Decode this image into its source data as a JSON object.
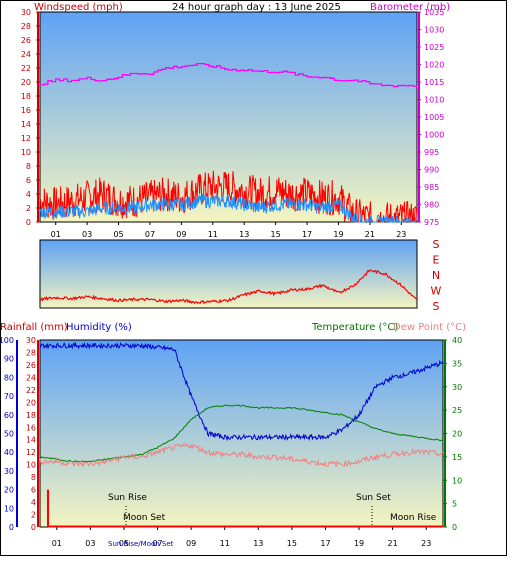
{
  "header": {
    "title": "24 hour graph day : 13 June 2025",
    "left_label": "Windspeed (mph)",
    "right_label": "Barometer (mb)"
  },
  "colors": {
    "wind_red": "#ff0000",
    "gust_blue": "#1e90ff",
    "baro": "#ff00ff",
    "temp": "#008000",
    "dew": "#f08080",
    "humidity": "#0000cc",
    "rain": "#ff0000",
    "label_red": "#cc0000",
    "label_green": "#007700",
    "label_blue": "#0000cc",
    "label_magenta": "#cc00cc",
    "sky_top": "#5ea2f5",
    "sky_bottom": "#f4f4c0"
  },
  "x_ticks": [
    "01",
    "03",
    "05",
    "07",
    "09",
    "11",
    "13",
    "15",
    "17",
    "19",
    "21",
    "23"
  ],
  "chart_data": [
    {
      "type": "line",
      "panel": "wind-barometer",
      "title": "24 hour graph day : 13 June 2025",
      "ylabel_left": "Windspeed (mph)",
      "ylabel_right": "Barometer (mb)",
      "ylim_left": [
        0,
        30
      ],
      "ylim_right": [
        975,
        1035
      ],
      "y_ticks_left": [
        "0",
        "2",
        "4",
        "6",
        "8",
        "10",
        "12",
        "14",
        "16",
        "18",
        "20",
        "22",
        "24",
        "26",
        "28",
        "30"
      ],
      "y_ticks_right": [
        "975",
        "980",
        "985",
        "990",
        "995",
        "1000",
        "1005",
        "1010",
        "1015",
        "1020",
        "1025",
        "1030",
        "1035"
      ],
      "x": [
        0,
        1,
        2,
        3,
        4,
        5,
        6,
        7,
        8,
        9,
        10,
        11,
        12,
        13,
        14,
        15,
        16,
        17,
        18,
        19,
        20,
        21,
        22,
        23,
        24
      ],
      "series": [
        {
          "name": "Windspeed",
          "values": [
            3,
            2.5,
            3,
            3.5,
            4,
            3,
            3,
            3.5,
            4,
            3.5,
            4.5,
            5,
            5,
            4.5,
            4,
            4.5,
            4,
            4,
            3.5,
            3.5,
            1,
            0.5,
            0.5,
            0.5,
            0.5
          ]
        },
        {
          "name": "Gust",
          "values": [
            1.5,
            1.5,
            1.5,
            1.5,
            2,
            2,
            2,
            2.5,
            2.5,
            2.5,
            3,
            3,
            3,
            2.5,
            2,
            2.5,
            2.5,
            2.5,
            2,
            2.5,
            0.5,
            0,
            0,
            0,
            0
          ]
        },
        {
          "name": "Barometer",
          "values": [
            1014.5,
            1015.5,
            1015.5,
            1016,
            1015.5,
            1016.5,
            1017.5,
            1017.5,
            1019,
            1019.5,
            1020,
            1019.5,
            1018.5,
            1018.5,
            1018,
            1018,
            1017.5,
            1016.5,
            1016.5,
            1015.5,
            1015.5,
            1014.5,
            1014,
            1014,
            1014
          ]
        }
      ]
    },
    {
      "type": "line",
      "panel": "wind-direction",
      "y_ticks": [
        "S",
        "E",
        "N",
        "W",
        "S"
      ],
      "x": [
        0,
        1,
        2,
        3,
        4,
        5,
        6,
        7,
        8,
        9,
        10,
        11,
        12,
        13,
        14,
        15,
        16,
        17,
        18,
        19,
        20,
        21,
        22,
        23,
        24
      ],
      "series": [
        {
          "name": "Wind direction",
          "values": [
            45,
            55,
            50,
            60,
            50,
            40,
            45,
            45,
            35,
            40,
            30,
            35,
            40,
            70,
            90,
            75,
            95,
            100,
            120,
            80,
            120,
            200,
            180,
            120,
            40
          ]
        }
      ]
    },
    {
      "type": "line",
      "panel": "rain-humidity-temperature",
      "labels": {
        "rainfall": "Rainfall (mm)",
        "humidity": "Humidity (%)",
        "temperature": "Temperature (°C)",
        "dewpoint": "Dew Point (°C)"
      },
      "ylim_rain": [
        0,
        30
      ],
      "ylim_humidity": [
        0,
        100
      ],
      "ylim_temperature": [
        0,
        40
      ],
      "y_ticks_rain": [
        "0",
        "2",
        "4",
        "6",
        "8",
        "10",
        "12",
        "14",
        "16",
        "18",
        "20",
        "22",
        "24",
        "26",
        "28",
        "30"
      ],
      "y_ticks_humidity": [
        "0",
        "10",
        "20",
        "30",
        "40",
        "50",
        "60",
        "70",
        "80",
        "90",
        "100"
      ],
      "y_ticks_temperature": [
        "0",
        "5",
        "10",
        "15",
        "20",
        "25",
        "30",
        "35",
        "40"
      ],
      "x": [
        0,
        1,
        2,
        3,
        4,
        5,
        6,
        7,
        8,
        9,
        10,
        11,
        12,
        13,
        14,
        15,
        16,
        17,
        18,
        19,
        20,
        21,
        22,
        23,
        24
      ],
      "series": [
        {
          "name": "Humidity",
          "values": [
            97,
            97,
            97,
            97,
            97,
            97,
            97,
            96,
            95,
            70,
            50,
            48,
            48,
            48,
            48,
            48,
            48,
            48,
            52,
            60,
            75,
            80,
            82,
            85,
            88
          ]
        },
        {
          "name": "Temperature",
          "values": [
            15,
            14.5,
            14,
            14,
            14.5,
            15,
            15.5,
            17,
            19,
            23,
            25.5,
            26,
            26,
            25.5,
            25.5,
            25.5,
            25,
            24.5,
            24,
            22.5,
            21,
            20,
            19.5,
            19,
            18.5
          ]
        },
        {
          "name": "Dew Point",
          "values": [
            14,
            14,
            13.5,
            13.5,
            14,
            15,
            15,
            16,
            17,
            17.5,
            16,
            15.5,
            15.5,
            15,
            15,
            14.5,
            14,
            13.5,
            13.5,
            14,
            15,
            15.5,
            16,
            16,
            15.5
          ]
        },
        {
          "name": "Rainfall",
          "values": [
            6,
            6,
            6,
            6,
            6,
            6,
            6,
            6,
            6,
            6,
            6,
            6,
            6,
            6,
            6,
            6,
            6,
            6,
            6,
            6,
            6,
            6,
            6,
            6,
            6
          ]
        }
      ],
      "annotations": {
        "sun_rise": "Sun Rise",
        "sun_set": "Sun Set",
        "moon_set": "Moon Set",
        "moon_rise": "Moon Rise",
        "sun_moon_overlap": "Sun Rise/Moon Set"
      }
    }
  ]
}
